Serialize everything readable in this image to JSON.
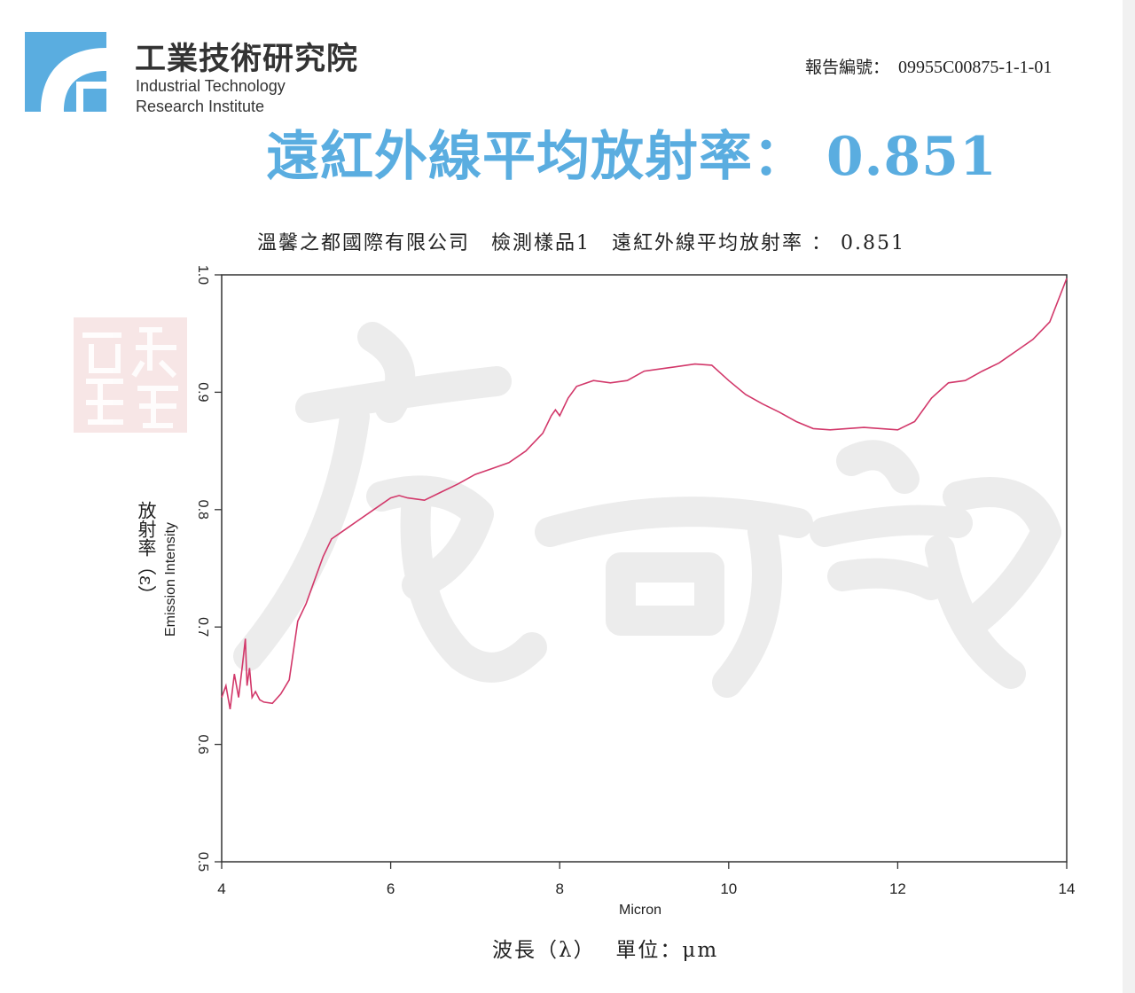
{
  "header": {
    "org_name_cn": "工業技術研究院",
    "org_name_en_line1": "Industrial Technology",
    "org_name_en_line2": "Research Institute",
    "report_label": "報告編號：",
    "report_number": "09955C00875-1-1-01"
  },
  "headline": "遠紅外線平均放射率： 0.851",
  "colors": {
    "brand_blue": "#5aade0",
    "series_line": "#d2386a",
    "stamp_red": "#f3dcdc",
    "watermark": "#ececec"
  },
  "icons": [
    "itri-logo-icon",
    "red-seal-stamp-icon",
    "signature-watermark-icon"
  ],
  "chart_data": {
    "type": "line",
    "title": "溫馨之都國際有限公司　檢測樣品1　遠紅外線平均放射率 ： 0.851",
    "xlabel": "Micron",
    "xlabel_cn": "波長（λ）　 單位：μm",
    "ylabel": "Emission Intensity",
    "ylabel_cn": "放射率（ε）",
    "xlim": [
      4,
      14
    ],
    "ylim": [
      0.5,
      1.0
    ],
    "xticks": [
      "4",
      "6",
      "8",
      "10",
      "12",
      "14"
    ],
    "yticks": [
      "0.5",
      "0.6",
      "0.7",
      "0.8",
      "0.9",
      "1.0"
    ],
    "grid": false,
    "legend": "none",
    "series": [
      {
        "x": [
          4.0,
          4.05,
          4.1,
          4.15,
          4.2,
          4.25,
          4.28,
          4.3,
          4.33,
          4.36,
          4.4,
          4.45,
          4.5,
          4.6,
          4.7,
          4.8,
          4.85,
          4.9,
          5.0,
          5.1,
          5.2,
          5.3,
          5.4,
          5.5,
          5.6,
          5.8,
          6.0,
          6.1,
          6.2,
          6.4,
          6.6,
          6.8,
          7.0,
          7.2,
          7.4,
          7.6,
          7.8,
          7.9,
          7.95,
          8.0,
          8.1,
          8.2,
          8.4,
          8.6,
          8.8,
          9.0,
          9.2,
          9.4,
          9.6,
          9.8,
          10.0,
          10.2,
          10.4,
          10.6,
          10.8,
          11.0,
          11.2,
          11.4,
          11.6,
          11.8,
          12.0,
          12.2,
          12.4,
          12.6,
          12.8,
          13.0,
          13.2,
          13.4,
          13.6,
          13.8,
          14.0
        ],
        "values": [
          0.64,
          0.65,
          0.63,
          0.66,
          0.64,
          0.67,
          0.69,
          0.65,
          0.665,
          0.64,
          0.645,
          0.638,
          0.636,
          0.635,
          0.643,
          0.655,
          0.68,
          0.705,
          0.72,
          0.74,
          0.76,
          0.775,
          0.78,
          0.785,
          0.79,
          0.8,
          0.81,
          0.812,
          0.81,
          0.808,
          0.815,
          0.822,
          0.83,
          0.835,
          0.84,
          0.85,
          0.865,
          0.88,
          0.885,
          0.88,
          0.895,
          0.905,
          0.91,
          0.908,
          0.91,
          0.918,
          0.92,
          0.922,
          0.924,
          0.923,
          0.91,
          0.898,
          0.89,
          0.883,
          0.875,
          0.869,
          0.868,
          0.869,
          0.87,
          0.869,
          0.868,
          0.875,
          0.895,
          0.908,
          0.91,
          0.918,
          0.925,
          0.935,
          0.945,
          0.96,
          0.997
        ]
      }
    ]
  }
}
